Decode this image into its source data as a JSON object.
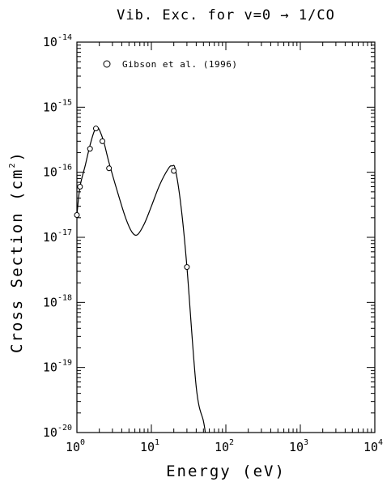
{
  "chart_data": {
    "type": "line",
    "title": "Vib. Exc. for v=0 → 1/CO",
    "xlabel": "Energy (eV)",
    "ylabel": "Cross Section (cm²)",
    "ylabel_parts": {
      "main": "Cross Section (cm",
      "sup": "2",
      "close": ")"
    },
    "x_scale": "log",
    "y_scale": "log",
    "xlim": [
      1,
      10000
    ],
    "ylim": [
      1e-20,
      1e-14
    ],
    "x_ticks": [
      {
        "base": "10",
        "exp": "0",
        "value": 1
      },
      {
        "base": "10",
        "exp": "1",
        "value": 10
      },
      {
        "base": "10",
        "exp": "2",
        "value": 100
      },
      {
        "base": "10",
        "exp": "3",
        "value": 1000
      },
      {
        "base": "10",
        "exp": "4",
        "value": 10000
      }
    ],
    "y_ticks": [
      {
        "base": "10",
        "exp": "-20",
        "value": 1e-20
      },
      {
        "base": "10",
        "exp": "-19",
        "value": 1e-19
      },
      {
        "base": "10",
        "exp": "-18",
        "value": 1e-18
      },
      {
        "base": "10",
        "exp": "-17",
        "value": 1e-17
      },
      {
        "base": "10",
        "exp": "-16",
        "value": 1e-16
      },
      {
        "base": "10",
        "exp": "-15",
        "value": 1e-15
      },
      {
        "base": "10",
        "exp": "-14",
        "value": 1e-14
      }
    ],
    "legend": {
      "placement": "top-left",
      "entries": [
        "Gibson et al. (1996)"
      ]
    },
    "grid": false,
    "series": [
      {
        "name": "Gibson et al. (1996)",
        "marker": "open-circle",
        "points": [
          [
            1.0,
            2.2e-17
          ],
          [
            1.1,
            6e-17
          ],
          [
            1.5,
            2.3e-16
          ],
          [
            1.8,
            4.7e-16
          ],
          [
            2.2,
            3e-16
          ],
          [
            2.7,
            1.15e-16
          ],
          [
            20.0,
            1.05e-16
          ],
          [
            30.0,
            3.5e-18
          ]
        ]
      },
      {
        "type": "line",
        "points": [
          [
            1.0,
            2.2e-17
          ],
          [
            1.1,
            6e-17
          ],
          [
            1.3,
            1.3e-16
          ],
          [
            1.5,
            2.6e-16
          ],
          [
            1.7,
            4.2e-16
          ],
          [
            1.85,
            4.8e-16
          ],
          [
            2.0,
            4.5e-16
          ],
          [
            2.3,
            2.9e-16
          ],
          [
            2.7,
            1.4e-16
          ],
          [
            3.5,
            5e-17
          ],
          [
            4.5,
            2e-17
          ],
          [
            5.5,
            1.2e-17
          ],
          [
            6.5,
            1.1e-17
          ],
          [
            8.0,
            1.6e-17
          ],
          [
            10.0,
            3e-17
          ],
          [
            13.0,
            6.5e-17
          ],
          [
            17.0,
            1.15e-16
          ],
          [
            19.0,
            1.25e-16
          ],
          [
            21.0,
            1.1e-16
          ],
          [
            25.0,
            3e-17
          ],
          [
            30.0,
            3.5e-18
          ],
          [
            40.0,
            5e-20
          ],
          [
            50.0,
            1.5e-20
          ],
          [
            53.0,
            1e-20
          ]
        ]
      }
    ]
  }
}
